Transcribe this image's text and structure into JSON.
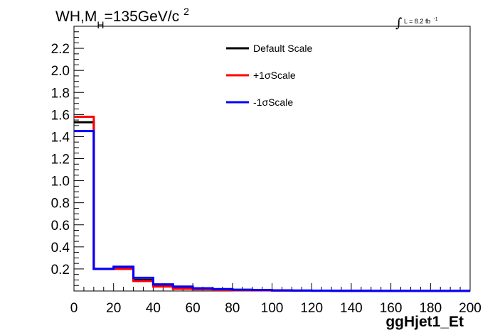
{
  "chart_data": {
    "type": "line",
    "title_main": "WH,M",
    "title_sub": "H",
    "title_rest": "=135GeV/c",
    "title_sup": "2",
    "lumi_label": "L = 8.2 fb",
    "lumi_sup": "-1",
    "xlabel": "ggHjet1_Et",
    "ylabel": "",
    "xlim": [
      0,
      200
    ],
    "ylim": [
      0,
      2.4
    ],
    "x_ticks": [
      "0",
      "20",
      "40",
      "60",
      "80",
      "100",
      "120",
      "140",
      "160",
      "180",
      "200"
    ],
    "x_tick_values": [
      0,
      20,
      40,
      60,
      80,
      100,
      120,
      140,
      160,
      180,
      200
    ],
    "y_ticks": [
      "0.2",
      "0.4",
      "0.6",
      "0.8",
      "1.0",
      "1.2",
      "1.4",
      "1.6",
      "1.8",
      "2.0",
      "2.2"
    ],
    "y_tick_values": [
      0.2,
      0.4,
      0.6,
      0.8,
      1.0,
      1.2,
      1.4,
      1.6,
      1.8,
      2.0,
      2.2
    ],
    "bin_edges": [
      0,
      10,
      20,
      30,
      40,
      50,
      60,
      70,
      80,
      90,
      100,
      110,
      120,
      130,
      140,
      150,
      160,
      170,
      180,
      190,
      200
    ],
    "legend_position": "top-center",
    "series": [
      {
        "name": "Default Scale",
        "color": "#000000",
        "values": [
          1.53,
          0.2,
          0.21,
          0.1,
          0.05,
          0.03,
          0.02,
          0.015,
          0.01,
          0.008,
          0.005,
          0.004,
          0.003,
          0.002,
          0.002,
          0.001,
          0.001,
          0.001,
          0.001,
          0.001
        ]
      },
      {
        "name": "+1σScale",
        "color": "#ff0000",
        "values": [
          1.58,
          0.2,
          0.2,
          0.09,
          0.04,
          0.02,
          0.015,
          0.01,
          0.008,
          0.006,
          0.004,
          0.003,
          0.002,
          0.002,
          0.001,
          0.001,
          0.001,
          0.001,
          0.001,
          0.001
        ]
      },
      {
        "name": "-1σScale",
        "color": "#0000ff",
        "values": [
          1.45,
          0.2,
          0.22,
          0.12,
          0.06,
          0.04,
          0.025,
          0.018,
          0.012,
          0.009,
          0.006,
          0.004,
          0.003,
          0.002,
          0.002,
          0.001,
          0.001,
          0.001,
          0.001,
          0.001
        ]
      }
    ]
  }
}
